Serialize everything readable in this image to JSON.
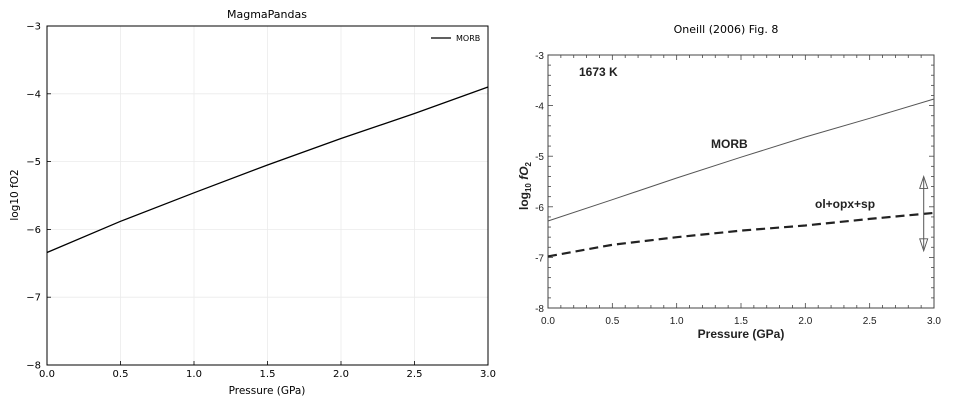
{
  "chart_data": [
    {
      "type": "line",
      "title": "MagmaPandas",
      "xlabel": "Pressure (GPa)",
      "ylabel": "log10 fO2",
      "xlim": [
        0,
        3.0
      ],
      "ylim": [
        -8,
        -3
      ],
      "xticks": [
        "0.0",
        "0.5",
        "1.0",
        "1.5",
        "2.0",
        "2.5",
        "3.0"
      ],
      "yticks": [
        "−8",
        "−7",
        "−6",
        "−5",
        "−4",
        "−3"
      ],
      "grid": true,
      "legend_position": "top-right",
      "series": [
        {
          "name": "MORB",
          "color": "#000000",
          "x": [
            0.0,
            0.5,
            1.0,
            1.5,
            2.0,
            2.5,
            3.0
          ],
          "y": [
            -6.34,
            -5.88,
            -5.46,
            -5.05,
            -4.66,
            -4.29,
            -3.9
          ]
        }
      ]
    },
    {
      "type": "line",
      "title": "Oneill (2006) Fig. 8",
      "xlabel": "Pressure  (GPa)",
      "ylabel_main": "log",
      "ylabel_sub": "10",
      "ylabel_f": " fO",
      "ylabel_sub2": "2",
      "xlim": [
        0,
        3.0
      ],
      "ylim": [
        -8,
        -3
      ],
      "xticks": [
        "0.0",
        "0.5",
        "1.0",
        "1.5",
        "2.0",
        "2.5",
        "3.0"
      ],
      "yticks": [
        "-8",
        "-7",
        "-6",
        "-5",
        "-4",
        "-3"
      ],
      "grid": false,
      "annotations": {
        "temperature": "1673 K",
        "morb_label": "MORB",
        "buffer_label": "ol+opx+sp"
      },
      "series": [
        {
          "color": "#555555",
          "style": "solid",
          "x": [
            0.0,
            0.5,
            1.0,
            1.5,
            2.0,
            2.5,
            3.0
          ],
          "y": [
            -6.28,
            -5.86,
            -5.43,
            -5.02,
            -4.62,
            -4.25,
            -3.87
          ]
        },
        {
          "color": "#222222",
          "style": "dashed",
          "x": [
            0.0,
            0.5,
            1.0,
            1.5,
            2.0,
            2.5,
            3.0
          ],
          "y": [
            -6.98,
            -6.75,
            -6.6,
            -6.47,
            -6.37,
            -6.24,
            -6.12
          ]
        }
      ],
      "uncertainty_arrow": {
        "x": 2.92,
        "y_low": -6.87,
        "y_high": -5.4
      }
    }
  ]
}
